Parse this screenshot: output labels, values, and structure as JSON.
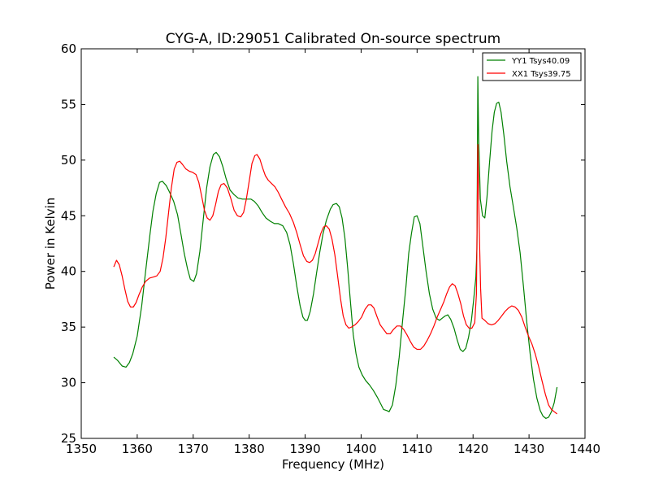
{
  "chart_data": {
    "type": "line",
    "title": "CYG-A, ID:29051 Calibrated On-source spectrum",
    "xlabel": "Frequency (MHz)",
    "ylabel": "Power in Kelvin",
    "xlim": [
      1350,
      1440
    ],
    "ylim": [
      25,
      60
    ],
    "xticks": [
      "1350",
      "1360",
      "1370",
      "1380",
      "1390",
      "1400",
      "1410",
      "1420",
      "1430",
      "1440"
    ],
    "yticks": [
      "25",
      "30",
      "35",
      "40",
      "45",
      "50",
      "55",
      "60"
    ],
    "grid": false,
    "legend_position": "top-right",
    "series": [
      {
        "name": "YY1 Tsys40.09",
        "color": "#008000",
        "points": [
          [
            1355.8,
            32.3
          ],
          [
            1356.5,
            32.0
          ],
          [
            1357.3,
            31.5
          ],
          [
            1358.0,
            31.4
          ],
          [
            1358.6,
            31.8
          ],
          [
            1359.2,
            32.6
          ],
          [
            1360.0,
            34.2
          ],
          [
            1360.8,
            36.9
          ],
          [
            1361.5,
            40.0
          ],
          [
            1362.3,
            43.4
          ],
          [
            1362.8,
            45.4
          ],
          [
            1363.4,
            47.0
          ],
          [
            1364.0,
            48.0
          ],
          [
            1364.5,
            48.1
          ],
          [
            1365.2,
            47.7
          ],
          [
            1365.8,
            47.1
          ],
          [
            1366.5,
            46.3
          ],
          [
            1367.2,
            45.1
          ],
          [
            1367.8,
            43.4
          ],
          [
            1368.4,
            41.6
          ],
          [
            1369.0,
            40.2
          ],
          [
            1369.5,
            39.3
          ],
          [
            1370.1,
            39.1
          ],
          [
            1370.6,
            39.8
          ],
          [
            1371.2,
            41.8
          ],
          [
            1371.8,
            44.7
          ],
          [
            1372.4,
            47.5
          ],
          [
            1373.0,
            49.4
          ],
          [
            1373.6,
            50.5
          ],
          [
            1374.1,
            50.7
          ],
          [
            1374.7,
            50.3
          ],
          [
            1375.3,
            49.4
          ],
          [
            1375.9,
            48.3
          ],
          [
            1376.6,
            47.3
          ],
          [
            1377.3,
            46.9
          ],
          [
            1378.0,
            46.6
          ],
          [
            1378.8,
            46.5
          ],
          [
            1379.5,
            46.5
          ],
          [
            1380.3,
            46.5
          ],
          [
            1380.9,
            46.3
          ],
          [
            1381.6,
            45.9
          ],
          [
            1382.3,
            45.3
          ],
          [
            1383.0,
            44.8
          ],
          [
            1383.8,
            44.5
          ],
          [
            1384.5,
            44.3
          ],
          [
            1385.2,
            44.3
          ],
          [
            1386.0,
            44.1
          ],
          [
            1386.7,
            43.5
          ],
          [
            1387.3,
            42.4
          ],
          [
            1387.9,
            40.7
          ],
          [
            1388.5,
            38.7
          ],
          [
            1389.1,
            36.9
          ],
          [
            1389.6,
            35.9
          ],
          [
            1390.0,
            35.6
          ],
          [
            1390.4,
            35.6
          ],
          [
            1390.9,
            36.4
          ],
          [
            1391.5,
            38.0
          ],
          [
            1392.0,
            39.7
          ],
          [
            1392.6,
            41.7
          ],
          [
            1393.2,
            43.4
          ],
          [
            1393.8,
            44.6
          ],
          [
            1394.5,
            45.6
          ],
          [
            1395.0,
            46.0
          ],
          [
            1395.6,
            46.1
          ],
          [
            1396.1,
            45.8
          ],
          [
            1396.6,
            44.8
          ],
          [
            1397.1,
            43.0
          ],
          [
            1397.6,
            40.3
          ],
          [
            1398.1,
            37.2
          ],
          [
            1398.6,
            34.3
          ],
          [
            1399.1,
            32.6
          ],
          [
            1399.6,
            31.4
          ],
          [
            1400.2,
            30.7
          ],
          [
            1400.8,
            30.2
          ],
          [
            1401.5,
            29.8
          ],
          [
            1402.2,
            29.3
          ],
          [
            1402.9,
            28.7
          ],
          [
            1403.5,
            28.1
          ],
          [
            1404.0,
            27.6
          ],
          [
            1404.6,
            27.5
          ],
          [
            1405.0,
            27.4
          ],
          [
            1405.6,
            28.0
          ],
          [
            1406.2,
            29.8
          ],
          [
            1406.8,
            32.3
          ],
          [
            1407.4,
            35.5
          ],
          [
            1408.0,
            38.6
          ],
          [
            1408.5,
            41.6
          ],
          [
            1409.0,
            43.4
          ],
          [
            1409.5,
            44.9
          ],
          [
            1410.0,
            45.0
          ],
          [
            1410.5,
            44.3
          ],
          [
            1411.0,
            42.4
          ],
          [
            1411.6,
            40.0
          ],
          [
            1412.2,
            38.0
          ],
          [
            1412.8,
            36.6
          ],
          [
            1413.4,
            35.8
          ],
          [
            1414.0,
            35.6
          ],
          [
            1414.5,
            35.8
          ],
          [
            1415.0,
            36.0
          ],
          [
            1415.5,
            36.1
          ],
          [
            1416.0,
            35.7
          ],
          [
            1416.6,
            34.9
          ],
          [
            1417.2,
            33.8
          ],
          [
            1417.7,
            33.0
          ],
          [
            1418.2,
            32.8
          ],
          [
            1418.7,
            33.1
          ],
          [
            1419.2,
            34.1
          ],
          [
            1419.7,
            35.6
          ],
          [
            1420.1,
            37.4
          ],
          [
            1420.5,
            39.5
          ],
          [
            1420.7,
            42.0
          ],
          [
            1420.85,
            57.5
          ],
          [
            1421.0,
            52.0
          ],
          [
            1421.3,
            46.5
          ],
          [
            1421.7,
            45.0
          ],
          [
            1422.1,
            44.8
          ],
          [
            1422.5,
            46.7
          ],
          [
            1422.9,
            49.5
          ],
          [
            1423.4,
            52.6
          ],
          [
            1423.8,
            54.3
          ],
          [
            1424.2,
            55.1
          ],
          [
            1424.6,
            55.2
          ],
          [
            1425.0,
            54.3
          ],
          [
            1425.5,
            52.3
          ],
          [
            1426.0,
            49.9
          ],
          [
            1426.6,
            47.6
          ],
          [
            1427.2,
            45.8
          ],
          [
            1427.8,
            43.9
          ],
          [
            1428.4,
            41.7
          ],
          [
            1429.0,
            38.7
          ],
          [
            1429.6,
            35.4
          ],
          [
            1430.2,
            32.6
          ],
          [
            1430.8,
            30.3
          ],
          [
            1431.4,
            28.6
          ],
          [
            1432.0,
            27.5
          ],
          [
            1432.5,
            27.0
          ],
          [
            1433.0,
            26.8
          ],
          [
            1433.5,
            26.9
          ],
          [
            1434.0,
            27.4
          ],
          [
            1434.5,
            28.2
          ],
          [
            1435.0,
            29.6
          ]
        ]
      },
      {
        "name": "XX1 Tsys39.75",
        "color": "#ff0000",
        "points": [
          [
            1355.8,
            40.4
          ],
          [
            1356.3,
            41.0
          ],
          [
            1356.8,
            40.6
          ],
          [
            1357.3,
            39.6
          ],
          [
            1357.8,
            38.4
          ],
          [
            1358.3,
            37.3
          ],
          [
            1358.8,
            36.8
          ],
          [
            1359.3,
            36.8
          ],
          [
            1359.8,
            37.2
          ],
          [
            1360.3,
            37.9
          ],
          [
            1360.9,
            38.6
          ],
          [
            1361.5,
            39.1
          ],
          [
            1362.2,
            39.4
          ],
          [
            1362.9,
            39.5
          ],
          [
            1363.5,
            39.6
          ],
          [
            1364.1,
            40.0
          ],
          [
            1364.6,
            41.2
          ],
          [
            1365.1,
            43.0
          ],
          [
            1365.6,
            45.3
          ],
          [
            1366.1,
            47.5
          ],
          [
            1366.6,
            49.2
          ],
          [
            1367.1,
            49.8
          ],
          [
            1367.6,
            49.9
          ],
          [
            1368.1,
            49.6
          ],
          [
            1368.7,
            49.2
          ],
          [
            1369.3,
            49.0
          ],
          [
            1369.9,
            48.9
          ],
          [
            1370.5,
            48.7
          ],
          [
            1371.0,
            48.0
          ],
          [
            1371.5,
            46.8
          ],
          [
            1372.0,
            45.5
          ],
          [
            1372.5,
            44.8
          ],
          [
            1373.0,
            44.6
          ],
          [
            1373.5,
            45.0
          ],
          [
            1374.0,
            46.0
          ],
          [
            1374.5,
            47.2
          ],
          [
            1375.0,
            47.8
          ],
          [
            1375.5,
            47.9
          ],
          [
            1376.1,
            47.5
          ],
          [
            1376.7,
            46.6
          ],
          [
            1377.3,
            45.5
          ],
          [
            1377.9,
            45.0
          ],
          [
            1378.5,
            44.9
          ],
          [
            1379.0,
            45.3
          ],
          [
            1379.5,
            46.5
          ],
          [
            1380.0,
            48.1
          ],
          [
            1380.5,
            49.7
          ],
          [
            1381.0,
            50.4
          ],
          [
            1381.4,
            50.5
          ],
          [
            1381.9,
            50.1
          ],
          [
            1382.4,
            49.3
          ],
          [
            1382.9,
            48.6
          ],
          [
            1383.4,
            48.2
          ],
          [
            1384.0,
            47.9
          ],
          [
            1384.6,
            47.6
          ],
          [
            1385.2,
            47.1
          ],
          [
            1385.8,
            46.5
          ],
          [
            1386.5,
            45.8
          ],
          [
            1387.2,
            45.2
          ],
          [
            1387.9,
            44.4
          ],
          [
            1388.5,
            43.5
          ],
          [
            1389.1,
            42.4
          ],
          [
            1389.7,
            41.4
          ],
          [
            1390.3,
            40.9
          ],
          [
            1390.8,
            40.8
          ],
          [
            1391.3,
            41.0
          ],
          [
            1391.8,
            41.6
          ],
          [
            1392.3,
            42.5
          ],
          [
            1392.8,
            43.4
          ],
          [
            1393.3,
            44.0
          ],
          [
            1393.8,
            44.1
          ],
          [
            1394.3,
            43.8
          ],
          [
            1394.8,
            42.9
          ],
          [
            1395.3,
            41.5
          ],
          [
            1395.8,
            39.6
          ],
          [
            1396.3,
            37.6
          ],
          [
            1396.8,
            36.0
          ],
          [
            1397.3,
            35.2
          ],
          [
            1397.8,
            34.9
          ],
          [
            1398.3,
            35.0
          ],
          [
            1398.9,
            35.2
          ],
          [
            1399.5,
            35.5
          ],
          [
            1400.1,
            35.9
          ],
          [
            1400.7,
            36.6
          ],
          [
            1401.3,
            37.0
          ],
          [
            1401.8,
            37.0
          ],
          [
            1402.3,
            36.7
          ],
          [
            1402.8,
            36.0
          ],
          [
            1403.4,
            35.2
          ],
          [
            1404.0,
            34.8
          ],
          [
            1404.6,
            34.4
          ],
          [
            1405.2,
            34.4
          ],
          [
            1405.8,
            34.8
          ],
          [
            1406.4,
            35.1
          ],
          [
            1407.0,
            35.1
          ],
          [
            1407.6,
            34.8
          ],
          [
            1408.2,
            34.3
          ],
          [
            1408.8,
            33.7
          ],
          [
            1409.4,
            33.2
          ],
          [
            1410.0,
            33.0
          ],
          [
            1410.6,
            33.0
          ],
          [
            1411.2,
            33.3
          ],
          [
            1411.8,
            33.8
          ],
          [
            1412.4,
            34.4
          ],
          [
            1413.0,
            35.1
          ],
          [
            1413.6,
            35.9
          ],
          [
            1414.2,
            36.6
          ],
          [
            1414.8,
            37.3
          ],
          [
            1415.3,
            38.0
          ],
          [
            1415.8,
            38.6
          ],
          [
            1416.3,
            38.9
          ],
          [
            1416.8,
            38.7
          ],
          [
            1417.3,
            38.0
          ],
          [
            1417.8,
            37.1
          ],
          [
            1418.3,
            36.0
          ],
          [
            1418.8,
            35.2
          ],
          [
            1419.3,
            34.9
          ],
          [
            1419.8,
            34.9
          ],
          [
            1420.3,
            35.4
          ],
          [
            1420.6,
            38.0
          ],
          [
            1420.85,
            51.4
          ],
          [
            1421.1,
            44.0
          ],
          [
            1421.35,
            38.5
          ],
          [
            1421.6,
            35.8
          ],
          [
            1422.1,
            35.6
          ],
          [
            1422.7,
            35.3
          ],
          [
            1423.3,
            35.2
          ],
          [
            1423.9,
            35.3
          ],
          [
            1424.5,
            35.6
          ],
          [
            1425.1,
            36.0
          ],
          [
            1425.7,
            36.4
          ],
          [
            1426.3,
            36.7
          ],
          [
            1426.9,
            36.9
          ],
          [
            1427.5,
            36.8
          ],
          [
            1428.1,
            36.5
          ],
          [
            1428.7,
            35.9
          ],
          [
            1429.3,
            35.0
          ],
          [
            1429.9,
            34.2
          ],
          [
            1430.5,
            33.5
          ],
          [
            1431.1,
            32.6
          ],
          [
            1431.7,
            31.5
          ],
          [
            1432.3,
            30.2
          ],
          [
            1432.9,
            29.0
          ],
          [
            1433.5,
            28.0
          ],
          [
            1434.0,
            27.6
          ],
          [
            1434.5,
            27.4
          ],
          [
            1435.0,
            27.2
          ]
        ]
      }
    ]
  }
}
